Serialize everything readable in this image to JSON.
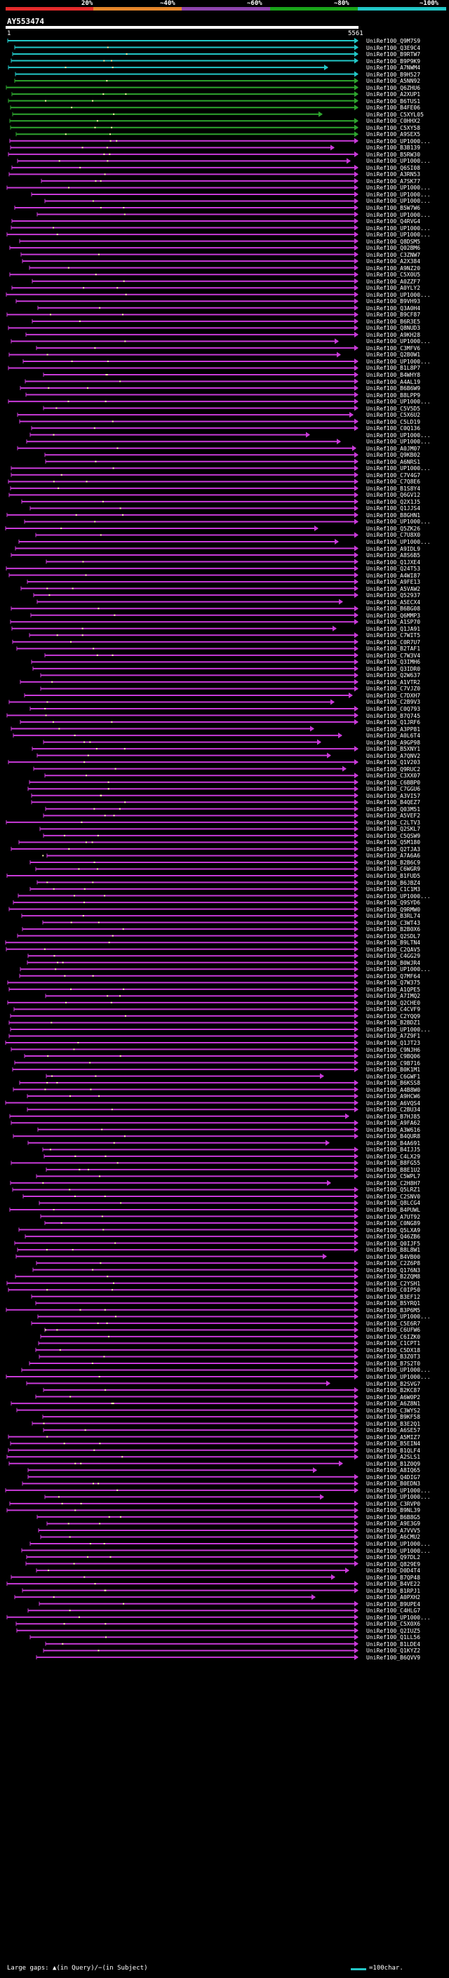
{
  "scale": {
    "ticks": [
      "20%",
      "~40%",
      "~60%",
      "~80%",
      "~100%"
    ],
    "colors": [
      "#e52b2b",
      "#e5862b",
      "#8e44ad",
      "#1aa51a",
      "#22c7c7"
    ]
  },
  "query": {
    "title": "AY553474",
    "start": "1",
    "end": "5561"
  },
  "hit_colors": {
    "cyan": "#22c7c7",
    "green": "#2ea52e",
    "magenta": "#c93ad9"
  },
  "hits": [
    "UniRef100_Q9M7S9",
    "UniRef100_Q3E9C4",
    "UniRef100_B9RTW7",
    "UniRef100_B9P9K9",
    "UniRef100_A7NWM4",
    "UniRef100_B9H527",
    "UniRef100_A5NN92",
    "UniRef100_Q6ZHU6",
    "UniRef100_A2XUP1",
    "UniRef100_B6TUS1",
    "UniRef100_B4FE06",
    "UniRef100_C5XYL05",
    "UniRef100_C0HHX2",
    "UniRef100_C5XY58",
    "UniRef100_A9SEX5",
    "UniRef100_UP1000...",
    "UniRef100_B3B139",
    "UniRef100_B5RW30",
    "UniRef100_UP1000...",
    "UniRef100_Q6SI08",
    "UniRef100_A3RN53",
    "UniRef100_A7SK77",
    "UniRef100_UP1000...",
    "UniRef100_UP1000...",
    "UniRef100_UP1000...",
    "UniRef100_B5W7W6",
    "UniRef100_UP1000...",
    "UniRef100_Q4RVG4",
    "UniRef100_UP1000...",
    "UniRef100_UP1000...",
    "UniRef100_Q8DSM5",
    "UniRef100_Q02BM6",
    "UniRef100_C3ZNW7",
    "UniRef100_A2X384",
    "UniRef100_A9NZ20",
    "UniRef100_C5X0U5",
    "UniRef100_A0ZZF7",
    "UniRef100_A0YLY2",
    "UniRef100_UP1000...",
    "UniRef100_B9VH93",
    "UniRef100_Q3A0H4",
    "UniRef100_B9CF87",
    "UniRef100_B6R3E5",
    "UniRef100_Q8NUD3",
    "UniRef100_A9KH28",
    "UniRef100_UP1000...",
    "UniRef100_C3MFV6",
    "UniRef100_Q2B0W1",
    "UniRef100_UP1000...",
    "UniRef100_B1L8P7",
    "UniRef100_B4WHY8",
    "UniRef100_A4AL19",
    "UniRef100_B6B6W9",
    "UniRef100_B8LPP9",
    "UniRef100_UP1000...",
    "UniRef100_C5V5D5",
    "UniRef100_C5X6U2",
    "UniRef100_C5LD19",
    "UniRef100_C0Q136",
    "UniRef100_UP1000...",
    "UniRef100_UP1000...",
    "UniRef100_A0JM07",
    "UniRef100_Q9KB02",
    "UniRef100_A6NRS1",
    "UniRef100_UP1000...",
    "UniRef100_C7V4G7",
    "UniRef100_C7Q8E6",
    "UniRef100_B1S8Y4",
    "UniRef100_Q6GV12",
    "UniRef100_Q2X1J5",
    "UniRef100_Q1JJS4",
    "UniRef100_B8GHN1",
    "UniRef100_UP1000...",
    "UniRef100_Q5ZK26",
    "UniRef100_C7U8X0",
    "UniRef100_UP1000...",
    "UniRef100_A9IDL9",
    "UniRef100_A8S6B5",
    "UniRef100_Q1JXE4",
    "UniRef100_Q24T53",
    "UniRef100_A4WI87",
    "UniRef100_A9FE13",
    "UniRef100_A5VAW2",
    "UniRef100_Q52937",
    "UniRef100_A5ECX4",
    "UniRef100_B6BG08",
    "UniRef100_Q6MMP3",
    "UniRef100_A1SP70",
    "UniRef100_Q1JA91",
    "UniRef100_C7WIT5",
    "UniRef100_C0R7U7",
    "UniRef100_B2TAF1",
    "UniRef100_C7W3V4",
    "UniRef100_Q3IMH6",
    "UniRef100_Q3IDR0",
    "UniRef100_Q2W637",
    "UniRef100_A1VTR2",
    "UniRef100_C7VJZ0",
    "UniRef100_C7DXH7",
    "UniRef100_C2B9V3",
    "UniRef100_C0Q793",
    "UniRef100_B7Q745",
    "UniRef100_Q1JRF6",
    "UniRef100_A3PP81",
    "UniRef100_A0L6T4",
    "UniRef100_A9GP98",
    "UniRef100_B5XNY1",
    "UniRef100_A7QNV2",
    "UniRef100_Q1V203",
    "UniRef100_Q9RUC2",
    "UniRef100_C3XX07",
    "UniRef100_C6BBP0",
    "UniRef100_C7GGU6",
    "UniRef100_A3VI57",
    "UniRef100_B4QEZ7",
    "UniRef100_Q03M51",
    "UniRef100_A5VEF2",
    "UniRef100_C2LTV3",
    "UniRef100_Q2SKL7",
    "UniRef100_C5QSW9",
    "UniRef100_Q5M180",
    "UniRef100_Q2TJA3",
    "UniRef100_A7A6A6",
    "UniRef100_B2B6C9",
    "UniRef100_C6WGR9",
    "UniRef100_B1FUD5",
    "UniRef100_B6JBZ4",
    "UniRef100_C1C1M3",
    "UniRef100_UP1000...",
    "UniRef100_Q9SYD6",
    "UniRef100_Q9RMW0",
    "UniRef100_B3RL74",
    "UniRef100_C3WT43",
    "UniRef100_B2B0X6",
    "UniRef100_Q2SDL7",
    "UniRef100_B9LTN4",
    "UniRef100_C2QAV5",
    "UniRef100_C4GG29",
    "UniRef100_B0WJR4",
    "UniRef100_UP1000...",
    "UniRef100_Q7MF64",
    "UniRef100_Q7W375",
    "UniRef100_A1QPE5",
    "UniRef100_A7IMQ2",
    "UniRef100_Q2CHE0",
    "UniRef100_C4CVF9",
    "UniRef100_C2YQQ9",
    "UniRef100_B2BDZ1",
    "UniRef100_UP1000...",
    "UniRef100_A7Z9F1",
    "UniRef100_Q1JT23",
    "UniRef100_C9NJH6",
    "UniRef100_C9BQ06",
    "UniRef100_C9B716",
    "UniRef100_B0K1M1",
    "UniRef100_C6GWF1",
    "UniRef100_B6KSS8",
    "UniRef100_A4B8W0",
    "UniRef100_A9HCW6",
    "UniRef100_A6VQS4",
    "UniRef100_C2BU34",
    "UniRef100_B7HJ85",
    "UniRef100_A9FA62",
    "UniRef100_A3W616",
    "UniRef100_B4QUR8",
    "UniRef100_B4A691",
    "UniRef100_B4IJJ5",
    "UniRef100_C4LX29",
    "UniRef100_B8FG55",
    "UniRef100_B8E1U2",
    "UniRef100_C5WPL7",
    "UniRef100_C2H8H7",
    "UniRef100_Q5LRZ1",
    "UniRef100_C2SNV0",
    "UniRef100_Q8LCG4",
    "UniRef100_B4PUWL",
    "UniRef100_A7UT92",
    "UniRef100_C0NG89",
    "UniRef100_Q5LXA9",
    "UniRef100_Q46ZB6",
    "UniRef100_Q0IJF5",
    "UniRef100_B8L8W1",
    "UniRef100_B4VB00",
    "UniRef100_C2Z6P8",
    "UniRef100_Q176N3",
    "UniRef100_B2ZQM8",
    "UniRef100_C2YSH1",
    "UniRef100_C0IP50",
    "UniRef100_B3EF12",
    "UniRef100_B5YRQ1",
    "UniRef100_B3P6M5",
    "UniRef100_UP1000...",
    "UniRef100_C5E6R7",
    "UniRef100_C6UFW6",
    "UniRef100_C6IZK0",
    "UniRef100_C1CPT1",
    "UniRef100_C5DX18",
    "UniRef100_B3Z0T3",
    "UniRef100_B7S2T0",
    "UniRef100_UP1000...",
    "UniRef100_UP1000...",
    "UniRef100_B2SVG7",
    "UniRef100_B2KC87",
    "UniRef100_A6W0P2",
    "UniRef100_A6Z8N1",
    "UniRef100_C3WYS2",
    "UniRef100_B9KF58",
    "UniRef100_B3E2Q1",
    "UniRef100_A6SE57",
    "UniRef100_A5MIZ7",
    "UniRef100_B5EIN4",
    "UniRef100_B1QLF4",
    "UniRef100_A2SLS1",
    "UniRef100_B1Z0Q9",
    "UniRef100_A8IQ65",
    "UniRef100_Q4DIG7",
    "UniRef100_B0EDN3",
    "UniRef100_UP1000...",
    "UniRef100_UP1000...",
    "UniRef100_C3RVP0",
    "UniRef100_B9NL39",
    "UniRef100_B6B8G5",
    "UniRef100_A9E3G9",
    "UniRef100_A7VVV5",
    "UniRef100_A6CMU2",
    "UniRef100_UP1000...",
    "UniRef100_UP1000...",
    "UniRef100_Q97DL2",
    "UniRef100_Q829E9",
    "UniRef100_D0D4T4",
    "UniRef100_B7QP48",
    "UniRef100_B4VE22",
    "UniRef100_B1RPJ1",
    "UniRef100_A0PXH2",
    "UniRef100_B9UPE4",
    "UniRef100_C4HLG7",
    "UniRef100_UP1000...",
    "UniRef100_C5X0X6",
    "UniRef100_Q2IUZ5",
    "UniRef100_Q1LL56",
    "UniRef100_B1LDE4",
    "UniRef100_Q1KYZ2",
    "UniRef100_B6QVV9"
  ],
  "footer": {
    "gaps_label": "Large gaps: ▲(in Query)/−(in Subject)",
    "legend_label": "=100char."
  }
}
